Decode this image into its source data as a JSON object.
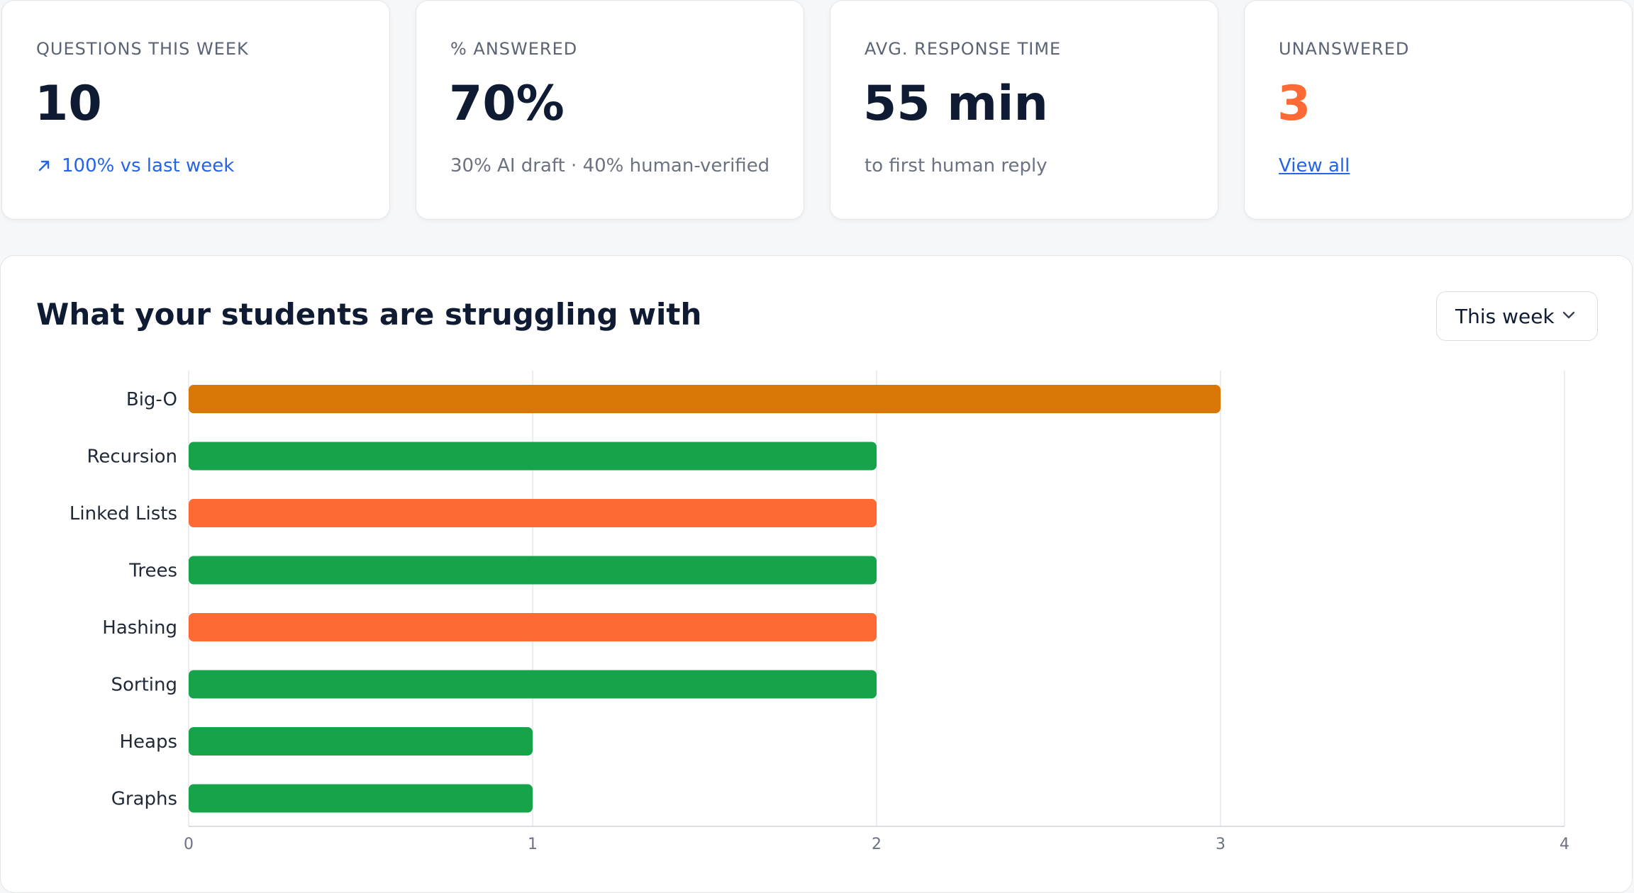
{
  "stats": [
    {
      "label": "QUESTIONS THIS WEEK",
      "value": "10",
      "sub": "100% vs last week",
      "sub_icon": "arrow-up-right-icon"
    },
    {
      "label": "% ANSWERED",
      "value": "70%",
      "sub": "30% AI draft · 40% human-verified"
    },
    {
      "label": "AVG. RESPONSE TIME",
      "value": "55 min",
      "sub": "to first human reply"
    },
    {
      "label": "UNANSWERED",
      "value": "3",
      "link": "View all"
    }
  ],
  "panel": {
    "title": "What your students are struggling with",
    "range_select": {
      "value": "This week",
      "icon": "chevron-down-icon"
    }
  },
  "colors": {
    "accent_orange": "#ff6a34",
    "dark_orange": "#d97706",
    "green": "#16a34a",
    "link_blue": "#2563eb"
  },
  "chart_data": {
    "type": "bar",
    "orientation": "horizontal",
    "categories": [
      "Big-O",
      "Recursion",
      "Linked Lists",
      "Trees",
      "Hashing",
      "Sorting",
      "Heaps",
      "Graphs"
    ],
    "values": [
      3,
      2,
      2,
      2,
      2,
      2,
      1,
      1
    ],
    "bar_colors": [
      "#d97706",
      "#16a34a",
      "#ff6a34",
      "#16a34a",
      "#ff6a34",
      "#16a34a",
      "#16a34a",
      "#16a34a"
    ],
    "xlim": [
      0,
      4
    ],
    "xticks": [
      "0",
      "1",
      "2",
      "3",
      "4"
    ],
    "grid": true,
    "title": "",
    "xlabel": "",
    "ylabel": ""
  }
}
